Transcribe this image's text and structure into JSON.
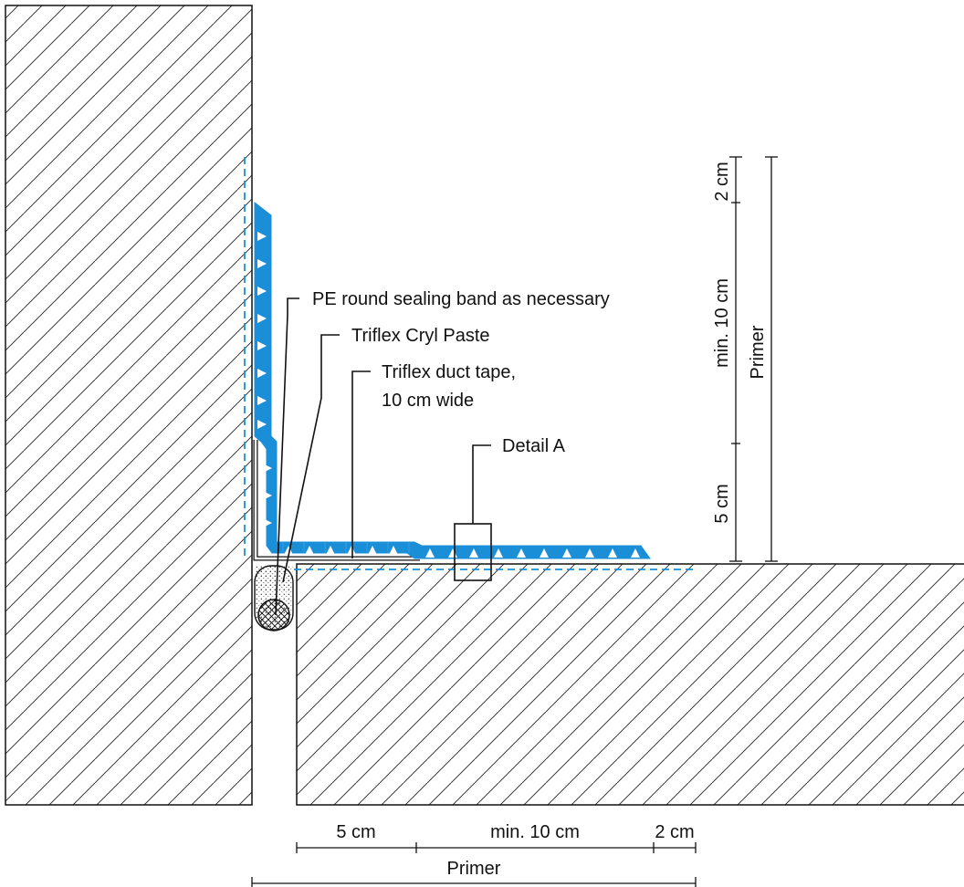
{
  "annotations": {
    "pe_band": "PE round sealing band as necessary",
    "cryl_paste": "Triflex Cryl Paste",
    "duct_tape_line1": "Triflex duct tape,",
    "duct_tape_line2": "10 cm wide",
    "detail": "Detail A"
  },
  "vertical_dimensions": {
    "top": "2 cm",
    "middle": "min. 10 cm",
    "bottom": "5 cm",
    "primer": "Primer"
  },
  "horizontal_dimensions": {
    "left": "5 cm",
    "middle": "min. 10 cm",
    "right": "2 cm",
    "primer": "Primer"
  },
  "colors": {
    "membrane": "#1a8fd8",
    "primer_line": "#1a8fd8",
    "hatch": "#222222",
    "outline": "#111111"
  }
}
